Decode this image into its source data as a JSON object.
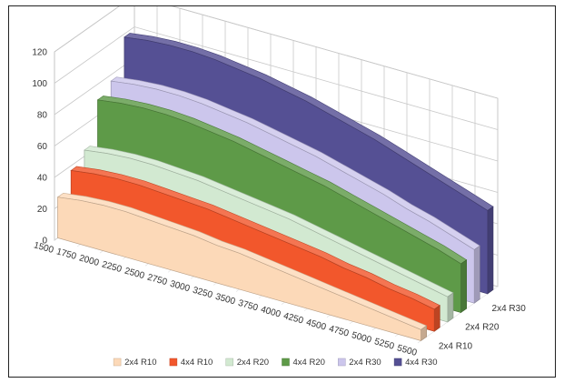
{
  "chart_data": {
    "type": "area",
    "subtype": "3d-area",
    "title": "",
    "xlabel": "",
    "ylabel": "",
    "ylim": [
      0,
      120
    ],
    "yticks": [
      "0",
      "20",
      "40",
      "60",
      "80",
      "100",
      "120"
    ],
    "categories": [
      "1500",
      "1750",
      "2000",
      "2250",
      "2500",
      "2750",
      "3000",
      "3250",
      "3500",
      "3750",
      "4000",
      "4250",
      "4500",
      "4750",
      "5000",
      "5250",
      "5500"
    ],
    "depth_labels": [
      "2x4 R10",
      "2x4 R20",
      "2x4 R30"
    ],
    "grid": true,
    "legend_position": "bottom",
    "series": [
      {
        "name": "2x4 R10",
        "color": "#FCD9B8",
        "values": [
          26,
          28,
          29,
          29,
          28,
          27,
          26,
          24,
          23,
          21,
          19,
          17,
          15,
          13,
          11,
          9,
          7
        ]
      },
      {
        "name": "4x4 R10",
        "color": "#F2572C",
        "values": [
          37,
          39,
          40,
          40,
          39,
          38,
          37,
          35,
          33,
          31,
          29,
          27,
          24,
          22,
          19,
          17,
          14
        ]
      },
      {
        "name": "2x4 R20",
        "color": "#D2E9D1",
        "values": [
          44,
          46,
          47,
          47,
          46,
          45,
          43,
          41,
          39,
          37,
          34,
          31,
          28,
          25,
          22,
          19,
          16
        ]
      },
      {
        "name": "4x4 R20",
        "color": "#5E9A48",
        "values": [
          70,
          72,
          73,
          73,
          72,
          70,
          68,
          65,
          62,
          59,
          56,
          52,
          48,
          44,
          40,
          36,
          31
        ]
      },
      {
        "name": "2x4 R30",
        "color": "#CCC6EC",
        "values": [
          76,
          78,
          79,
          79,
          78,
          76,
          74,
          71,
          68,
          65,
          61,
          57,
          53,
          48,
          44,
          39,
          34
        ]
      },
      {
        "name": "4x4 R30",
        "color": "#555094",
        "values": [
          98,
          100,
          101,
          101,
          100,
          98,
          96,
          93,
          90,
          86,
          82,
          78,
          73,
          68,
          63,
          58,
          53
        ]
      }
    ]
  }
}
